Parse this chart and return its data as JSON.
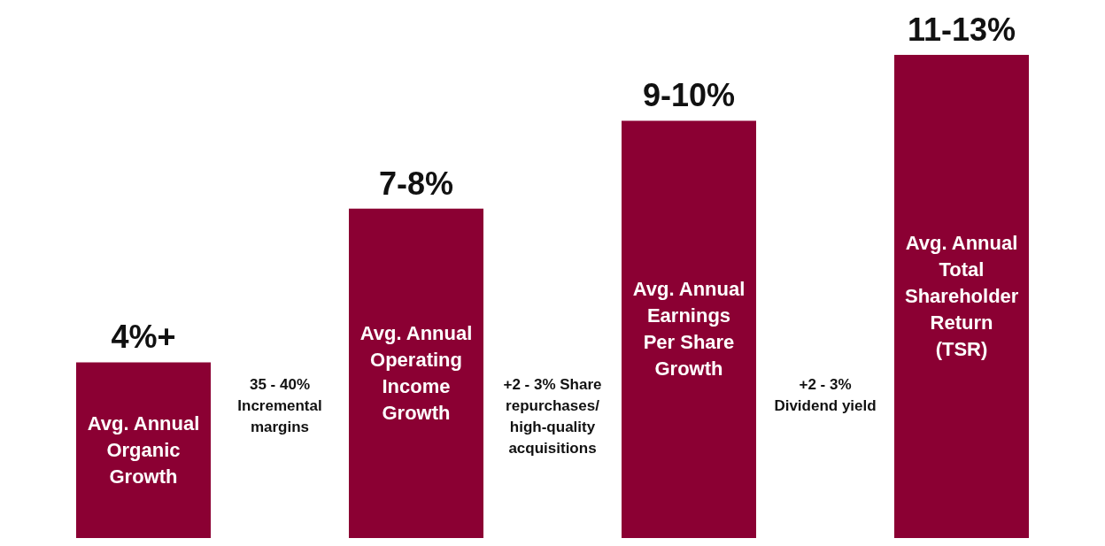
{
  "chart_data": {
    "type": "bar",
    "categories": [
      "Avg. Annual Organic Growth",
      "Avg. Annual Operating Income Growth",
      "Avg. Annual Earnings Per Share Growth",
      "Avg. Annual Total Shareholder Return (TSR)"
    ],
    "values": [
      4,
      7.5,
      9.5,
      11
    ],
    "value_labels": [
      "4%+",
      "7-8%",
      "9-10%",
      "11-13%"
    ],
    "color": "#8b0033",
    "annotations": [
      "35 - 40% Incremental margins",
      "+2 - 3% Share repurchases/ high-quality acquisitions",
      "+2 - 3% Dividend yield"
    ]
  }
}
